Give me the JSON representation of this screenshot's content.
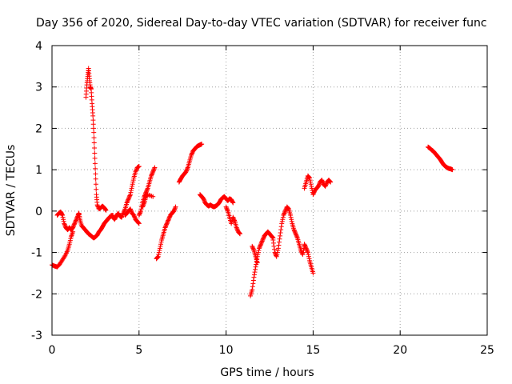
{
  "chart_data": {
    "type": "scatter",
    "title": "Day 356 of 2020, Sidereal Day-to-day VTEC variation (SDTVAR) for receiver func",
    "xlabel": "GPS time / hours",
    "ylabel": "SDTVAR / TECUs",
    "xlim": [
      0,
      25
    ],
    "ylim": [
      -3,
      4
    ],
    "xticks": [
      0,
      5,
      10,
      15,
      20,
      25
    ],
    "yticks": [
      -3,
      -2,
      -1,
      0,
      1,
      2,
      3,
      4
    ],
    "grid": true,
    "marker": "+",
    "series": [
      {
        "name": "SDTVAR",
        "color": "#ff0000",
        "segments": [
          [
            [
              0.0,
              -1.3
            ],
            [
              0.15,
              -1.33
            ],
            [
              0.3,
              -1.35
            ],
            [
              0.45,
              -1.28
            ],
            [
              0.6,
              -1.18
            ],
            [
              0.75,
              -1.08
            ],
            [
              0.9,
              -0.95
            ],
            [
              1.0,
              -0.8
            ],
            [
              1.1,
              -0.62
            ],
            [
              1.2,
              -0.5
            ]
          ],
          [
            [
              0.3,
              -0.1
            ],
            [
              0.4,
              -0.05
            ],
            [
              0.5,
              -0.02
            ],
            [
              0.6,
              -0.1
            ],
            [
              0.7,
              -0.3
            ],
            [
              0.8,
              -0.4
            ],
            [
              0.9,
              -0.45
            ],
            [
              1.0,
              -0.4
            ],
            [
              1.1,
              -0.45
            ],
            [
              1.2,
              -0.4
            ],
            [
              1.3,
              -0.3
            ],
            [
              1.4,
              -0.2
            ],
            [
              1.5,
              -0.1
            ],
            [
              1.55,
              -0.05
            ],
            [
              1.6,
              -0.2
            ],
            [
              1.7,
              -0.35
            ],
            [
              1.8,
              -0.4
            ],
            [
              1.9,
              -0.45
            ],
            [
              2.0,
              -0.5
            ]
          ],
          [
            [
              1.95,
              2.75
            ],
            [
              2.0,
              3.05
            ],
            [
              2.05,
              3.25
            ],
            [
              2.1,
              3.45
            ],
            [
              2.15,
              3.2
            ],
            [
              2.2,
              3.0
            ],
            [
              2.25,
              2.95
            ],
            [
              2.3,
              2.6
            ],
            [
              2.35,
              2.3
            ],
            [
              2.4,
              1.9
            ],
            [
              2.45,
              1.4
            ],
            [
              2.5,
              0.9
            ],
            [
              2.55,
              0.4
            ],
            [
              2.6,
              0.15
            ],
            [
              2.7,
              0.05
            ],
            [
              2.8,
              0.08
            ],
            [
              2.9,
              0.12
            ],
            [
              3.0,
              0.08
            ],
            [
              3.1,
              0.02
            ]
          ],
          [
            [
              2.0,
              -0.5
            ],
            [
              2.1,
              -0.55
            ],
            [
              2.2,
              -0.58
            ],
            [
              2.3,
              -0.62
            ],
            [
              2.4,
              -0.65
            ],
            [
              2.5,
              -0.62
            ],
            [
              2.6,
              -0.58
            ],
            [
              2.7,
              -0.5
            ],
            [
              2.8,
              -0.45
            ],
            [
              2.9,
              -0.38
            ],
            [
              3.0,
              -0.3
            ],
            [
              3.1,
              -0.25
            ],
            [
              3.2,
              -0.2
            ],
            [
              3.3,
              -0.15
            ],
            [
              3.4,
              -0.12
            ],
            [
              3.5,
              -0.1
            ]
          ],
          [
            [
              3.4,
              -0.1
            ],
            [
              3.5,
              -0.15
            ],
            [
              3.6,
              -0.2
            ],
            [
              3.7,
              -0.12
            ],
            [
              3.8,
              -0.05
            ],
            [
              3.9,
              -0.12
            ],
            [
              4.0,
              -0.15
            ],
            [
              4.1,
              -0.05
            ],
            [
              4.2,
              0.05
            ],
            [
              4.3,
              0.2
            ],
            [
              4.4,
              0.3
            ],
            [
              4.5,
              0.4
            ],
            [
              4.6,
              0.6
            ],
            [
              4.7,
              0.8
            ],
            [
              4.8,
              0.95
            ],
            [
              4.9,
              1.05
            ],
            [
              5.0,
              1.08
            ]
          ],
          [
            [
              4.2,
              -0.1
            ],
            [
              4.3,
              -0.05
            ],
            [
              4.4,
              0.0
            ],
            [
              4.5,
              0.05
            ],
            [
              4.6,
              -0.05
            ],
            [
              4.7,
              -0.1
            ],
            [
              4.8,
              -0.2
            ],
            [
              4.9,
              -0.25
            ],
            [
              5.0,
              -0.3
            ]
          ],
          [
            [
              5.0,
              -0.1
            ],
            [
              5.1,
              0.0
            ],
            [
              5.2,
              0.2
            ],
            [
              5.3,
              0.35
            ],
            [
              5.4,
              0.45
            ],
            [
              5.5,
              0.55
            ],
            [
              5.6,
              0.7
            ],
            [
              5.7,
              0.85
            ],
            [
              5.8,
              0.95
            ],
            [
              5.9,
              1.05
            ]
          ],
          [
            [
              5.2,
              0.1
            ],
            [
              5.3,
              0.2
            ],
            [
              5.4,
              0.35
            ],
            [
              5.5,
              0.4
            ],
            [
              5.8,
              0.35
            ]
          ],
          [
            [
              6.0,
              -1.15
            ],
            [
              6.1,
              -1.1
            ],
            [
              6.2,
              -0.9
            ],
            [
              6.3,
              -0.7
            ],
            [
              6.4,
              -0.55
            ],
            [
              6.5,
              -0.4
            ],
            [
              6.6,
              -0.3
            ],
            [
              6.7,
              -0.2
            ],
            [
              6.8,
              -0.1
            ],
            [
              6.9,
              -0.05
            ],
            [
              7.0,
              0.0
            ],
            [
              7.1,
              0.1
            ]
          ],
          [
            [
              7.3,
              0.7
            ],
            [
              7.4,
              0.78
            ],
            [
              7.5,
              0.85
            ],
            [
              7.6,
              0.9
            ],
            [
              7.7,
              0.95
            ],
            [
              7.8,
              1.05
            ],
            [
              7.9,
              1.2
            ],
            [
              8.0,
              1.35
            ],
            [
              8.1,
              1.45
            ],
            [
              8.2,
              1.5
            ],
            [
              8.3,
              1.55
            ],
            [
              8.4,
              1.58
            ],
            [
              8.5,
              1.6
            ],
            [
              8.6,
              1.62
            ]
          ],
          [
            [
              8.5,
              0.4
            ],
            [
              8.6,
              0.35
            ],
            [
              8.7,
              0.3
            ],
            [
              8.8,
              0.2
            ],
            [
              8.9,
              0.15
            ],
            [
              9.0,
              0.12
            ],
            [
              9.1,
              0.15
            ],
            [
              9.2,
              0.12
            ],
            [
              9.3,
              0.1
            ],
            [
              9.4,
              0.12
            ],
            [
              9.5,
              0.15
            ],
            [
              9.6,
              0.2
            ],
            [
              9.7,
              0.28
            ],
            [
              9.8,
              0.32
            ],
            [
              9.9,
              0.35
            ],
            [
              10.0,
              0.3
            ],
            [
              10.1,
              0.25
            ],
            [
              10.2,
              0.3
            ],
            [
              10.3,
              0.28
            ],
            [
              10.4,
              0.2
            ]
          ],
          [
            [
              10.0,
              0.1
            ],
            [
              10.1,
              0.0
            ],
            [
              10.2,
              -0.15
            ],
            [
              10.3,
              -0.3
            ],
            [
              10.4,
              -0.15
            ],
            [
              10.5,
              -0.25
            ],
            [
              10.6,
              -0.4
            ],
            [
              10.7,
              -0.5
            ],
            [
              10.8,
              -0.55
            ]
          ],
          [
            [
              11.4,
              -2.05
            ],
            [
              11.5,
              -1.9
            ],
            [
              11.6,
              -1.6
            ],
            [
              11.7,
              -1.35
            ],
            [
              11.8,
              -1.1
            ],
            [
              11.9,
              -0.9
            ],
            [
              12.0,
              -0.8
            ],
            [
              12.1,
              -0.7
            ],
            [
              12.2,
              -0.6
            ],
            [
              12.3,
              -0.55
            ],
            [
              12.4,
              -0.5
            ],
            [
              12.5,
              -0.55
            ],
            [
              12.6,
              -0.6
            ],
            [
              12.7,
              -0.65
            ]
          ],
          [
            [
              11.5,
              -0.85
            ],
            [
              11.6,
              -0.95
            ],
            [
              11.7,
              -1.1
            ],
            [
              11.8,
              -1.25
            ]
          ],
          [
            [
              12.7,
              -0.7
            ],
            [
              12.8,
              -1.0
            ],
            [
              12.9,
              -1.1
            ],
            [
              13.0,
              -0.9
            ],
            [
              13.1,
              -0.6
            ],
            [
              13.2,
              -0.3
            ],
            [
              13.3,
              -0.1
            ],
            [
              13.4,
              0.0
            ],
            [
              13.5,
              0.1
            ],
            [
              13.6,
              0.05
            ],
            [
              13.7,
              -0.1
            ],
            [
              13.8,
              -0.3
            ],
            [
              13.9,
              -0.45
            ],
            [
              14.0,
              -0.55
            ],
            [
              14.1,
              -0.65
            ],
            [
              14.2,
              -0.8
            ],
            [
              14.3,
              -0.95
            ],
            [
              14.4,
              -1.05
            ],
            [
              14.5,
              -0.85
            ]
          ],
          [
            [
              14.5,
              -0.8
            ],
            [
              14.6,
              -0.9
            ],
            [
              14.7,
              -1.0
            ],
            [
              14.8,
              -1.2
            ],
            [
              14.9,
              -1.35
            ],
            [
              15.0,
              -1.5
            ]
          ],
          [
            [
              14.5,
              0.55
            ],
            [
              14.6,
              0.7
            ],
            [
              14.7,
              0.85
            ],
            [
              14.8,
              0.8
            ],
            [
              14.9,
              0.6
            ],
            [
              15.0,
              0.4
            ],
            [
              15.1,
              0.5
            ],
            [
              15.2,
              0.55
            ],
            [
              15.3,
              0.6
            ],
            [
              15.4,
              0.7
            ],
            [
              15.5,
              0.75
            ],
            [
              15.6,
              0.65
            ],
            [
              15.7,
              0.6
            ],
            [
              15.8,
              0.7
            ],
            [
              15.9,
              0.75
            ],
            [
              16.0,
              0.7
            ]
          ],
          [
            [
              21.6,
              1.55
            ],
            [
              21.7,
              1.52
            ],
            [
              21.8,
              1.48
            ],
            [
              21.9,
              1.45
            ],
            [
              22.0,
              1.4
            ],
            [
              22.1,
              1.35
            ],
            [
              22.2,
              1.3
            ],
            [
              22.3,
              1.25
            ],
            [
              22.4,
              1.18
            ],
            [
              22.5,
              1.12
            ],
            [
              22.6,
              1.08
            ],
            [
              22.7,
              1.05
            ],
            [
              22.8,
              1.03
            ],
            [
              22.9,
              1.02
            ],
            [
              23.0,
              1.0
            ]
          ]
        ]
      }
    ]
  }
}
